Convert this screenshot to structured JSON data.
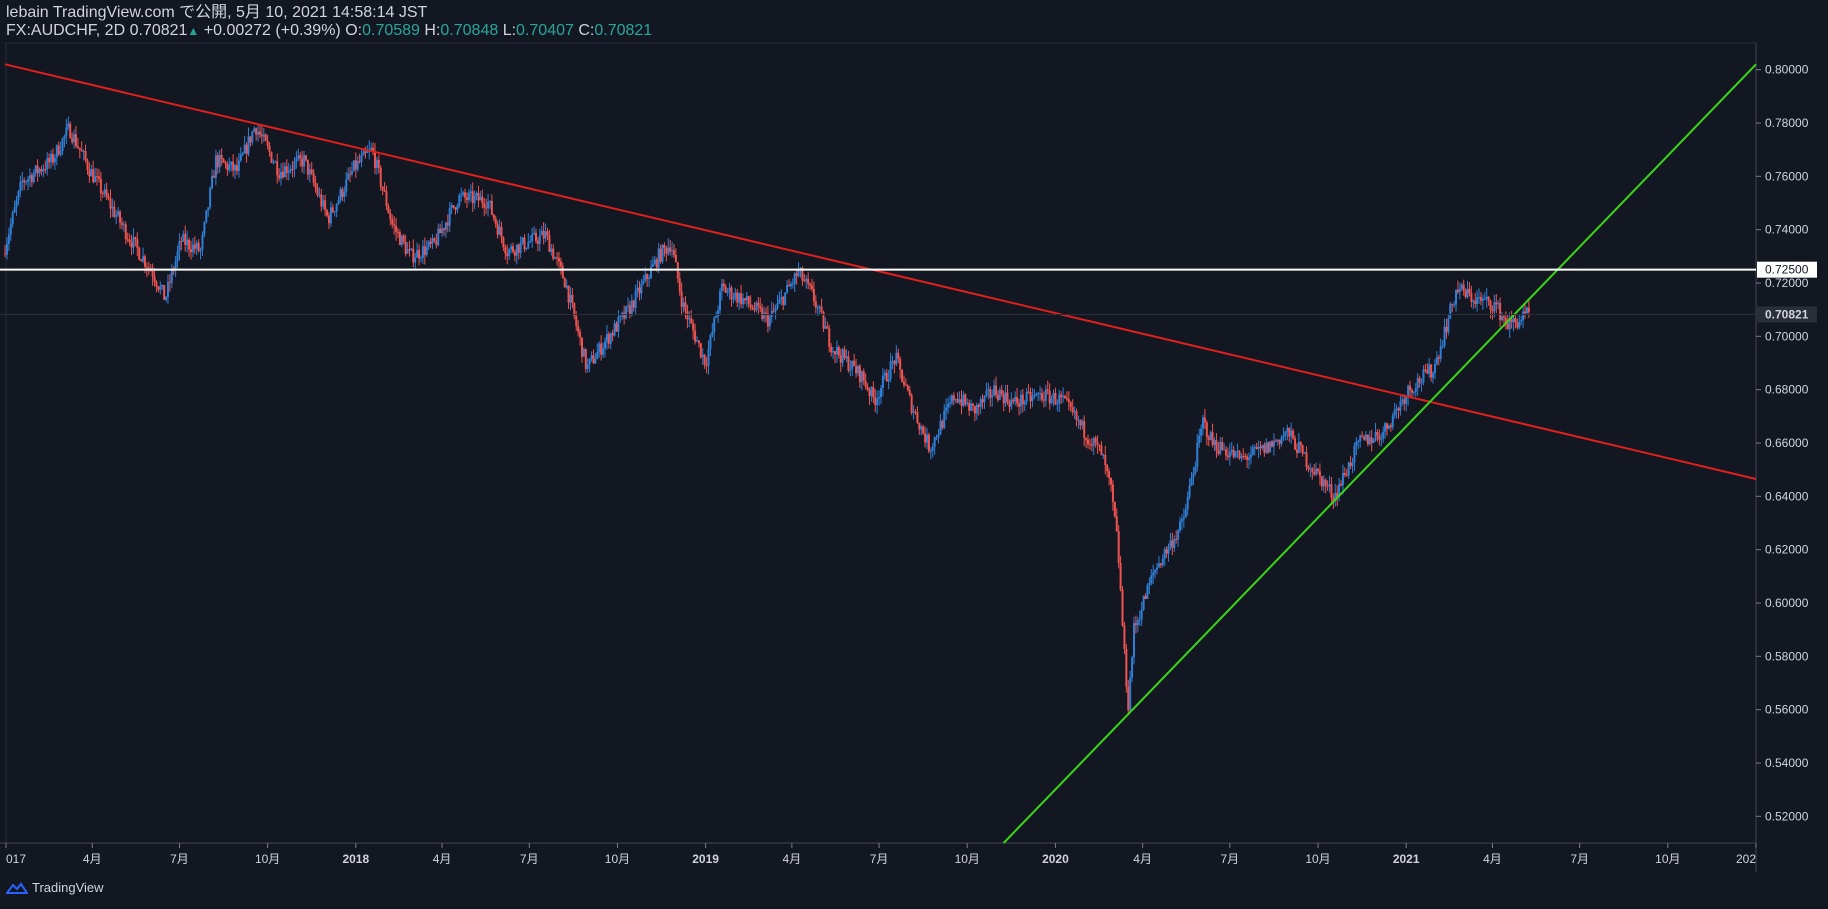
{
  "header": {
    "line1": "lebain TradingView.com で公開, 5月 10, 2021 14:58:14 JST",
    "symbol": "FX:AUDCHF, 2D",
    "last": "0.70821",
    "change": "+0.00272 (+0.39%)",
    "o_label": "O:",
    "o": "0.70589",
    "h_label": "H:",
    "h": "0.70848",
    "l_label": "L:",
    "l": "0.70407",
    "c_label": "C:",
    "c": "0.70821"
  },
  "footer": {
    "brand": "TradingView"
  },
  "colors": {
    "background": "#131722",
    "up": "#2f7fd6",
    "down": "#ef5350",
    "trend_down": "#e0201c",
    "trend_up": "#3ad617",
    "level": "#ffffff",
    "text": "#d1d4dc"
  },
  "chart_data": {
    "type": "candlestick",
    "symbol": "FX:AUDCHF",
    "timeframe": "2D",
    "ylim": [
      0.51,
      0.81
    ],
    "y_ticks": [
      "0.80000",
      "0.78000",
      "0.76000",
      "0.74000",
      "0.72000",
      "0.70000",
      "0.68000",
      "0.66000",
      "0.64000",
      "0.62000",
      "0.60000",
      "0.58000",
      "0.56000",
      "0.54000",
      "0.52000"
    ],
    "x_ticks": [
      "017",
      "4月",
      "7月",
      "10月",
      "2018",
      "4月",
      "7月",
      "10月",
      "2019",
      "4月",
      "7月",
      "10月",
      "2020",
      "4月",
      "7月",
      "10月",
      "2021",
      "4月",
      "7月",
      "10月",
      "202"
    ],
    "x_tick_dates": [
      "2017-01-01",
      "2017-04-01",
      "2017-07-01",
      "2017-10-01",
      "2018-01-01",
      "2018-04-01",
      "2018-07-01",
      "2018-10-01",
      "2019-01-01",
      "2019-04-01",
      "2019-07-01",
      "2019-10-01",
      "2020-01-01",
      "2020-04-01",
      "2020-07-01",
      "2020-10-01",
      "2021-01-01",
      "2021-04-01",
      "2021-07-01",
      "2021-10-01",
      "2022-01-01"
    ],
    "price_path": [
      [
        "2016-12-31",
        0.731
      ],
      [
        "2017-01-20",
        0.758
      ],
      [
        "2017-02-20",
        0.766
      ],
      [
        "2017-03-10",
        0.778
      ],
      [
        "2017-04-01",
        0.762
      ],
      [
        "2017-05-10",
        0.738
      ],
      [
        "2017-06-05",
        0.724
      ],
      [
        "2017-06-18",
        0.714
      ],
      [
        "2017-07-05",
        0.736
      ],
      [
        "2017-07-25",
        0.732
      ],
      [
        "2017-08-10",
        0.766
      ],
      [
        "2017-09-01",
        0.762
      ],
      [
        "2017-09-20",
        0.779
      ],
      [
        "2017-10-15",
        0.762
      ],
      [
        "2017-11-10",
        0.766
      ],
      [
        "2017-12-05",
        0.744
      ],
      [
        "2018-01-01",
        0.763
      ],
      [
        "2018-01-20",
        0.77
      ],
      [
        "2018-02-10",
        0.742
      ],
      [
        "2018-03-01",
        0.73
      ],
      [
        "2018-03-25",
        0.734
      ],
      [
        "2018-04-20",
        0.752
      ],
      [
        "2018-05-20",
        0.751
      ],
      [
        "2018-06-10",
        0.732
      ],
      [
        "2018-06-30",
        0.735
      ],
      [
        "2018-07-20",
        0.738
      ],
      [
        "2018-08-10",
        0.72
      ],
      [
        "2018-09-01",
        0.688
      ],
      [
        "2018-09-20",
        0.698
      ],
      [
        "2018-10-15",
        0.71
      ],
      [
        "2018-11-15",
        0.73
      ],
      [
        "2018-11-28",
        0.735
      ],
      [
        "2018-12-10",
        0.712
      ],
      [
        "2019-01-03",
        0.69
      ],
      [
        "2019-01-20",
        0.718
      ],
      [
        "2019-02-10",
        0.714
      ],
      [
        "2019-03-10",
        0.706
      ],
      [
        "2019-04-10",
        0.724
      ],
      [
        "2019-04-25",
        0.715
      ],
      [
        "2019-05-15",
        0.696
      ],
      [
        "2019-06-15",
        0.685
      ],
      [
        "2019-06-28",
        0.676
      ],
      [
        "2019-07-20",
        0.692
      ],
      [
        "2019-08-05",
        0.675
      ],
      [
        "2019-08-25",
        0.658
      ],
      [
        "2019-09-20",
        0.678
      ],
      [
        "2019-10-10",
        0.672
      ],
      [
        "2019-11-01",
        0.68
      ],
      [
        "2019-11-20",
        0.675
      ],
      [
        "2019-12-20",
        0.678
      ],
      [
        "2020-01-10",
        0.676
      ],
      [
        "2020-02-01",
        0.665
      ],
      [
        "2020-02-20",
        0.656
      ],
      [
        "2020-03-01",
        0.642
      ],
      [
        "2020-03-08",
        0.622
      ],
      [
        "2020-03-15",
        0.58
      ],
      [
        "2020-03-19",
        0.562
      ],
      [
        "2020-03-25",
        0.59
      ],
      [
        "2020-04-15",
        0.612
      ],
      [
        "2020-05-15",
        0.63
      ],
      [
        "2020-06-05",
        0.668
      ],
      [
        "2020-06-15",
        0.66
      ],
      [
        "2020-07-15",
        0.654
      ],
      [
        "2020-08-10",
        0.658
      ],
      [
        "2020-09-01",
        0.664
      ],
      [
        "2020-09-20",
        0.654
      ],
      [
        "2020-10-20",
        0.64
      ],
      [
        "2020-11-15",
        0.66
      ],
      [
        "2020-12-10",
        0.664
      ],
      [
        "2021-01-05",
        0.68
      ],
      [
        "2021-02-01",
        0.688
      ],
      [
        "2021-02-25",
        0.718
      ],
      [
        "2021-03-15",
        0.714
      ],
      [
        "2021-04-05",
        0.712
      ],
      [
        "2021-04-20",
        0.704
      ],
      [
        "2021-05-10",
        0.708
      ]
    ],
    "lines": [
      {
        "name": "resistance",
        "color": "#e0201c",
        "from": [
          "2016-12-31",
          0.802
        ],
        "to": [
          "2022-01-01",
          0.6465
        ]
      },
      {
        "name": "support",
        "color": "#3ad617",
        "from": [
          "2019-11-08",
          0.51
        ],
        "to": [
          "2022-01-01",
          0.802
        ]
      },
      {
        "name": "level",
        "color": "#ffffff",
        "price": 0.725
      }
    ],
    "labels": {
      "level": "0.72500",
      "last": "0.70821"
    }
  }
}
